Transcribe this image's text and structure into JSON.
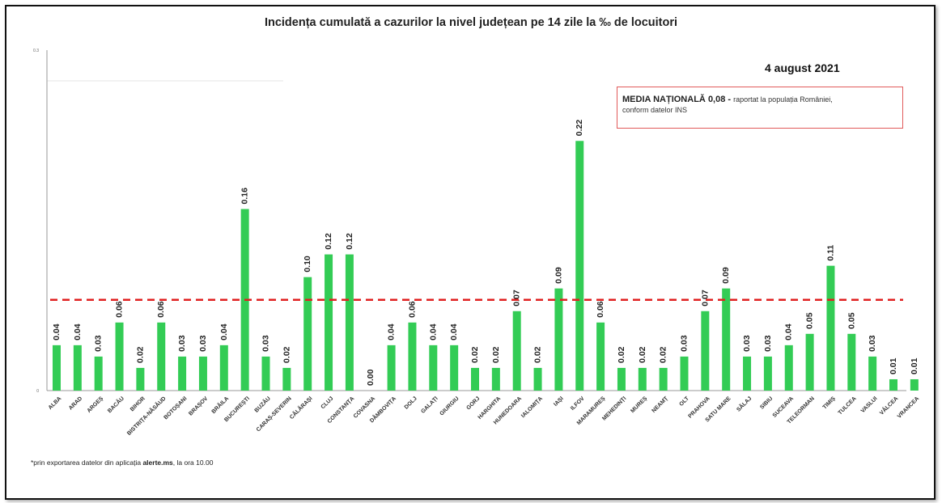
{
  "title": "Incidența cumulată a cazurilor la nivel județean pe 14 zile   la ‰ de locuitori",
  "date": "4 august 2021",
  "media_box": {
    "label": "MEDIA NAȚIONALĂ",
    "value": "0,08",
    "dash": "-",
    "note_line1": "raportat la populația României,",
    "note_line2": "conform datelor INS"
  },
  "footnote": {
    "prefix": "*prin exportarea datelor din aplicația ",
    "app": "alerte.ms",
    "suffix": ", la ora 10.00"
  },
  "colors": {
    "bar": "#33cc55",
    "reference_line": "#e02020",
    "axis": "#999999",
    "gridline": "#e6e6e6",
    "box_border": "#e15a5a"
  },
  "chart_data": {
    "type": "bar",
    "title": "Incidența cumulată a cazurilor la nivel județean pe 14 zile   la ‰ de locuitori",
    "xlabel": "",
    "ylabel": "",
    "ylim": [
      0,
      0.3
    ],
    "y_ticks": [
      "0",
      "0.3"
    ],
    "grid": false,
    "reference_line": {
      "value": 0.08,
      "style": "dashed"
    },
    "categories": [
      "ALBA",
      "ARAD",
      "ARGEȘ",
      "BACĂU",
      "BIHOR",
      "BISTRIȚA-NĂSĂUD",
      "BOTOȘANI",
      "BRAȘOV",
      "BRĂILA",
      "BUCUREȘTI",
      "BUZĂU",
      "CARAȘ-SEVERIN",
      "CĂLĂRAȘI",
      "CLUJ",
      "CONSTANȚA",
      "COVASNA",
      "DÂMBOVIȚA",
      "DOLJ",
      "GALAȚI",
      "GIURGIU",
      "GORJ",
      "HARGHITA",
      "HUNEDOARA",
      "IALOMIȚA",
      "IAȘI",
      "ILFOV",
      "MARAMUREȘ",
      "MEHEDINȚI",
      "MUREȘ",
      "NEAMȚ",
      "OLT",
      "PRAHOVA",
      "SATU MARE",
      "SĂLAJ",
      "SIBIU",
      "SUCEAVA",
      "TELEORMAN",
      "TIMIȘ",
      "TULCEA",
      "VASLUI",
      "VÂLCEA",
      "VRANCEA"
    ],
    "values": [
      0.04,
      0.04,
      0.03,
      0.06,
      0.02,
      0.06,
      0.03,
      0.03,
      0.04,
      0.16,
      0.03,
      0.02,
      0.1,
      0.12,
      0.12,
      0.0,
      0.04,
      0.06,
      0.04,
      0.04,
      0.02,
      0.02,
      0.07,
      0.02,
      0.09,
      0.22,
      0.06,
      0.02,
      0.02,
      0.02,
      0.03,
      0.07,
      0.09,
      0.03,
      0.03,
      0.04,
      0.05,
      0.11,
      0.05,
      0.03,
      0.01,
      0.01
    ],
    "labels": [
      "0.04",
      "0.04",
      "0.03",
      "0.06",
      "0.02",
      "0.06",
      "0.03",
      "0.03",
      "0.04",
      "0.16",
      "0.03",
      "0.02",
      "0.10",
      "0.12",
      "0.12",
      "0.00",
      "0.04",
      "0.06",
      "0.04",
      "0.04",
      "0.02",
      "0.02",
      "0.07",
      "0.02",
      "0.09",
      "0.22",
      "0.06",
      "0.02",
      "0.02",
      "0.02",
      "0.03",
      "0.07",
      "0.09",
      "0.03",
      "0.03",
      "0.04",
      "0.05",
      "0.11",
      "0.05",
      "0.03",
      "0.01",
      "0.01"
    ]
  }
}
